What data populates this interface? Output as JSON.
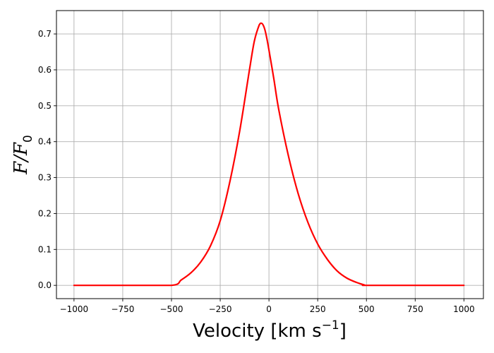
{
  "chart_data": {
    "type": "line",
    "title": "",
    "xlabel": "Velocity [km s",
    "xlabel_sup": "−1",
    "xlabel_suffix": "]",
    "ylabel_main": "F/F",
    "ylabel_sub": "0",
    "xlim": [
      -1090,
      1100
    ],
    "ylim": [
      -0.037,
      0.765
    ],
    "xticks": [
      -1000,
      -750,
      -500,
      -250,
      0,
      250,
      500,
      750,
      1000
    ],
    "xtick_labels": [
      "−1000",
      "−750",
      "−500",
      "−250",
      "0",
      "250",
      "500",
      "750",
      "1000"
    ],
    "yticks": [
      0.0,
      0.1,
      0.2,
      0.3,
      0.4,
      0.5,
      0.6,
      0.7
    ],
    "ytick_labels": [
      "0.0",
      "0.1",
      "0.2",
      "0.3",
      "0.4",
      "0.5",
      "0.6",
      "0.7"
    ],
    "grid": true,
    "series": [
      {
        "color": "#ff0000",
        "x": [
          -1000,
          -750,
          -500,
          -450,
          -400,
          -350,
          -300,
          -250,
          -200,
          -150,
          -100,
          -75,
          -50,
          -40,
          -30,
          -20,
          -10,
          0,
          25,
          50,
          100,
          150,
          200,
          250,
          300,
          350,
          400,
          450,
          490,
          500,
          750,
          1000
        ],
        "y": [
          0.0,
          0.0,
          0.0,
          0.015,
          0.035,
          0.065,
          0.11,
          0.18,
          0.29,
          0.43,
          0.6,
          0.68,
          0.725,
          0.73,
          0.725,
          0.71,
          0.685,
          0.655,
          0.575,
          0.49,
          0.36,
          0.255,
          0.175,
          0.115,
          0.072,
          0.04,
          0.02,
          0.008,
          0.001,
          0.0,
          0.0,
          0.0
        ]
      }
    ]
  }
}
